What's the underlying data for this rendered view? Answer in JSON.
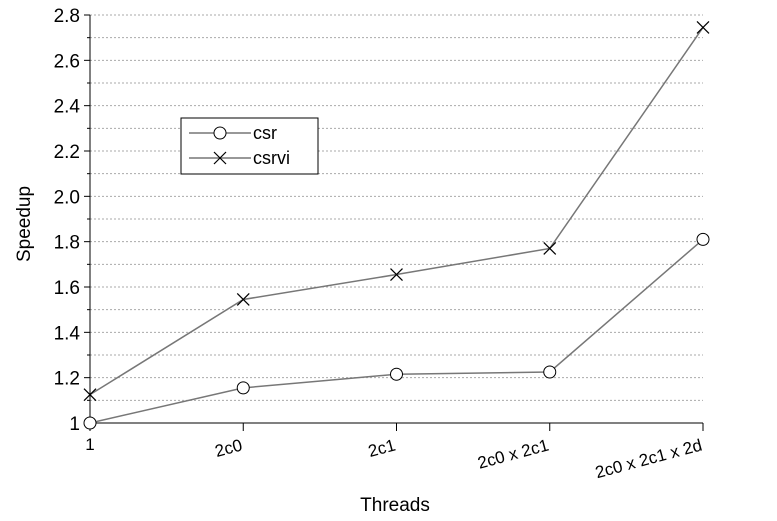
{
  "chart_data": {
    "type": "line",
    "xlabel": "Threads",
    "ylabel": "Speedup",
    "categories": [
      "1",
      "2c0",
      "2c1",
      "2c0 x 2c1",
      "2c0 x 2c1 x 2d"
    ],
    "ylim": [
      1,
      2.8
    ],
    "yticks": [
      "1",
      "1.2",
      "1.4",
      "1.6",
      "1.8",
      "2.0",
      "2.2",
      "2.4",
      "2.6",
      "2.8"
    ],
    "grid": true,
    "legend_position": "upper-left",
    "series": [
      {
        "name": "csr",
        "marker": "circle",
        "values": [
          1.0,
          1.155,
          1.215,
          1.225,
          1.81
        ]
      },
      {
        "name": "csrvi",
        "marker": "x",
        "values": [
          1.125,
          1.545,
          1.655,
          1.77,
          2.745
        ]
      }
    ],
    "colors": {
      "line": "#777777",
      "marker": "#000000",
      "grid": "#aaaaaa"
    }
  }
}
